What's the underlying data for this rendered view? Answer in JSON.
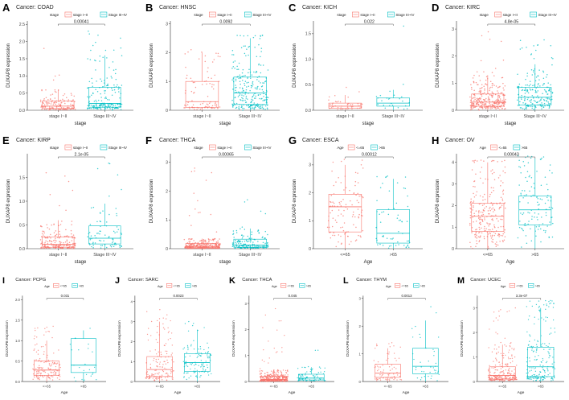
{
  "colors": {
    "group1": "#F8766D",
    "group2": "#00BFC4",
    "panel_bg": "#FFFFFF",
    "axis": "#333333",
    "text": "#222222",
    "bracket": "#555555"
  },
  "chart_data": [
    {
      "letter": "A",
      "title": "Cancer: COAD",
      "type": "boxplot",
      "legend_title": "stage",
      "legend_labels": [
        "stage I~II",
        "Stage III~IV"
      ],
      "categories": [
        "stage I~II",
        "Stage III~IV"
      ],
      "xlabel": "stage",
      "ylabel": "DUXAP8 expression",
      "ylim": [
        0,
        2.6
      ],
      "yticks": [
        0,
        0.5,
        1,
        1.5,
        2,
        2.5
      ],
      "pvalue": "0.00041",
      "boxes": [
        {
          "q1": 0.05,
          "med": 0.12,
          "q3": 0.27,
          "wlo": 0,
          "whi": 0.6,
          "max": 1.8,
          "n": 150
        },
        {
          "q1": 0.09,
          "med": 0.2,
          "q3": 0.67,
          "wlo": 0,
          "whi": 1.6,
          "max": 2.3,
          "n": 200
        }
      ]
    },
    {
      "letter": "B",
      "title": "Cancer: HNSC",
      "type": "boxplot",
      "legend_title": "stage",
      "legend_labels": [
        "stage I~II",
        "Stage III~IV"
      ],
      "categories": [
        "stage I~II",
        "Stage III~IV"
      ],
      "xlabel": "stage",
      "ylabel": "DUXAP8 expression",
      "ylim": [
        0,
        3.1
      ],
      "yticks": [
        0,
        1,
        2,
        3
      ],
      "pvalue": "0.0092",
      "boxes": [
        {
          "q1": 0.1,
          "med": 0.3,
          "q3": 1.0,
          "wlo": 0,
          "whi": 2.0,
          "max": 2.1,
          "n": 90
        },
        {
          "q1": 0.2,
          "med": 0.6,
          "q3": 1.15,
          "wlo": 0,
          "whi": 2.5,
          "max": 2.6,
          "n": 260
        }
      ]
    },
    {
      "letter": "C",
      "title": "Cancer: KICH",
      "type": "boxplot",
      "legend_title": "stage",
      "legend_labels": [
        "stage I~II",
        "Stage III~IV"
      ],
      "categories": [
        "stage I~II",
        "Stage III~IV"
      ],
      "xlabel": "stage",
      "ylabel": "DUXAP8 expression",
      "ylim": [
        0,
        1.75
      ],
      "yticks": [
        0,
        0.5,
        1,
        1.5
      ],
      "pvalue": "0.022",
      "boxes": [
        {
          "q1": 0.04,
          "med": 0.08,
          "q3": 0.14,
          "wlo": 0,
          "whi": 0.3,
          "max": 0.45,
          "n": 45
        },
        {
          "q1": 0.08,
          "med": 0.14,
          "q3": 0.24,
          "wlo": 0,
          "whi": 0.4,
          "max": 1.65,
          "n": 25
        }
      ]
    },
    {
      "letter": "D",
      "title": "Cancer: KIRC",
      "type": "boxplot",
      "legend_title": "stage",
      "legend_labels": [
        "stage I~II",
        "Stage III~IV"
      ],
      "categories": [
        "stage I~II",
        "Stage III~IV"
      ],
      "xlabel": "stage",
      "ylabel": "DUXAP8 expression",
      "ylim": [
        0,
        3.3
      ],
      "yticks": [
        0,
        1,
        2,
        3
      ],
      "pvalue": "4.8e-05",
      "boxes": [
        {
          "q1": 0.15,
          "med": 0.3,
          "q3": 0.6,
          "wlo": 0,
          "whi": 1.3,
          "max": 2.9,
          "n": 300
        },
        {
          "q1": 0.2,
          "med": 0.48,
          "q3": 0.85,
          "wlo": 0,
          "whi": 1.7,
          "max": 2.6,
          "n": 200
        }
      ]
    },
    {
      "letter": "E",
      "title": "Cancer: KIRP",
      "type": "boxplot",
      "legend_title": "stage",
      "legend_labels": [
        "stage I~II",
        "Stage III~IV"
      ],
      "categories": [
        "stage I~II",
        "Stage III~IV"
      ],
      "xlabel": "stage",
      "ylabel": "DUXAP8 expression",
      "ylim": [
        0,
        2.0
      ],
      "yticks": [
        0,
        0.5,
        1,
        1.5
      ],
      "pvalue": "2.1e-05",
      "boxes": [
        {
          "q1": 0.03,
          "med": 0.09,
          "q3": 0.25,
          "wlo": 0,
          "whi": 0.6,
          "max": 1.6,
          "n": 200
        },
        {
          "q1": 0.1,
          "med": 0.22,
          "q3": 0.48,
          "wlo": 0,
          "whi": 0.95,
          "max": 1.8,
          "n": 80
        }
      ]
    },
    {
      "letter": "F",
      "title": "Cancer: THCA",
      "type": "boxplot",
      "legend_title": "stage",
      "legend_labels": [
        "stage I~II",
        "Stage III~IV"
      ],
      "categories": [
        "stage I~II",
        "Stage III~IV"
      ],
      "xlabel": "stage",
      "ylabel": "DUXAP8 expression",
      "ylim": [
        0,
        3.3
      ],
      "yticks": [
        0,
        1,
        2,
        3
      ],
      "pvalue": "0.00065",
      "boxes": [
        {
          "q1": 0.03,
          "med": 0.08,
          "q3": 0.18,
          "wlo": 0,
          "whi": 0.35,
          "max": 2.8,
          "n": 330
        },
        {
          "q1": 0.05,
          "med": 0.13,
          "q3": 0.33,
          "wlo": 0,
          "whi": 0.7,
          "max": 1.7,
          "n": 170
        }
      ]
    },
    {
      "letter": "G",
      "title": "Cancer: ESCA",
      "type": "boxplot",
      "legend_title": "Age",
      "legend_labels": [
        "<=65",
        ">65"
      ],
      "categories": [
        "<=65",
        ">65"
      ],
      "xlabel": "Age",
      "ylabel": "DUXAP8 expression",
      "ylim": [
        0,
        3.4
      ],
      "yticks": [
        0,
        1,
        2,
        3
      ],
      "pvalue": "0.00012",
      "boxes": [
        {
          "q1": 0.6,
          "med": 1.5,
          "q3": 1.95,
          "wlo": 0,
          "whi": 3.0,
          "max": 3.2,
          "n": 110
        },
        {
          "q1": 0.2,
          "med": 0.55,
          "q3": 1.4,
          "wlo": 0,
          "whi": 2.5,
          "max": 2.6,
          "n": 60
        }
      ]
    },
    {
      "letter": "H",
      "title": "Cancer: OV",
      "type": "boxplot",
      "legend_title": "Age",
      "legend_labels": [
        "<=65",
        ">65"
      ],
      "categories": [
        "<=65",
        ">65"
      ],
      "xlabel": "Age",
      "ylabel": "DUXAP8 expression",
      "ylim": [
        0,
        4.4
      ],
      "yticks": [
        0,
        1,
        2,
        3,
        4
      ],
      "pvalue": "0.00043",
      "boxes": [
        {
          "q1": 0.8,
          "med": 1.5,
          "q3": 2.1,
          "wlo": 0,
          "whi": 4.0,
          "max": 4.1,
          "n": 250
        },
        {
          "q1": 1.1,
          "med": 1.8,
          "q3": 2.45,
          "wlo": 0,
          "whi": 4.2,
          "max": 4.3,
          "n": 120
        }
      ]
    },
    {
      "letter": "I",
      "title": "Cancer: PCPG",
      "type": "boxplot",
      "legend_title": "Age",
      "legend_labels": [
        "<=65",
        ">65"
      ],
      "categories": [
        "<=65",
        ">65"
      ],
      "xlabel": "Age",
      "ylabel": "DUXAP8 expression",
      "ylim": [
        0,
        2.1
      ],
      "yticks": [
        0,
        0.5,
        1,
        1.5,
        2
      ],
      "pvalue": "0.031",
      "boxes": [
        {
          "q1": 0.15,
          "med": 0.28,
          "q3": 0.5,
          "wlo": 0,
          "whi": 1.0,
          "max": 1.35,
          "n": 150
        },
        {
          "q1": 0.22,
          "med": 0.4,
          "q3": 1.05,
          "wlo": 0,
          "whi": 1.25,
          "max": 1.3,
          "n": 25
        }
      ]
    },
    {
      "letter": "J",
      "title": "Cancer: SARC",
      "type": "boxplot",
      "legend_title": "Age",
      "legend_labels": [
        "<=65",
        ">65"
      ],
      "categories": [
        "<=65",
        ">65"
      ],
      "xlabel": "Age",
      "ylabel": "DUXAP8 expression",
      "ylim": [
        0,
        4.3
      ],
      "yticks": [
        0,
        1,
        2,
        3,
        4
      ],
      "pvalue": "0.0023",
      "boxes": [
        {
          "q1": 0.25,
          "med": 0.6,
          "q3": 1.25,
          "wlo": 0,
          "whi": 3.0,
          "max": 3.6,
          "n": 150
        },
        {
          "q1": 0.5,
          "med": 0.95,
          "q3": 1.4,
          "wlo": 0,
          "whi": 2.6,
          "max": 3.0,
          "n": 110
        }
      ]
    },
    {
      "letter": "K",
      "title": "Cancer: THCA",
      "type": "boxplot",
      "legend_title": "Age",
      "legend_labels": [
        "<=65",
        ">65"
      ],
      "categories": [
        "<=65",
        ">65"
      ],
      "xlabel": "Age",
      "ylabel": "DUXAP8 expression",
      "ylim": [
        0,
        3.3
      ],
      "yticks": [
        0,
        1,
        2,
        3
      ],
      "pvalue": "0.045",
      "boxes": [
        {
          "q1": 0.03,
          "med": 0.08,
          "q3": 0.2,
          "wlo": 0,
          "whi": 0.45,
          "max": 2.8,
          "n": 420
        },
        {
          "q1": 0.06,
          "med": 0.13,
          "q3": 0.28,
          "wlo": 0,
          "whi": 0.55,
          "max": 1.2,
          "n": 80
        }
      ]
    },
    {
      "letter": "L",
      "title": "Cancer: THYM",
      "type": "boxplot",
      "legend_title": "Age",
      "legend_labels": [
        "<=65",
        ">65"
      ],
      "categories": [
        "<=65",
        ">65"
      ],
      "xlabel": "Age",
      "ylabel": "DUXAP8 expression",
      "ylim": [
        0,
        3.1
      ],
      "yticks": [
        0,
        1,
        2,
        3
      ],
      "pvalue": "0.0013",
      "boxes": [
        {
          "q1": 0.15,
          "med": 0.3,
          "q3": 0.62,
          "wlo": 0,
          "whi": 1.2,
          "max": 1.4,
          "n": 80
        },
        {
          "q1": 0.28,
          "med": 0.55,
          "q3": 1.2,
          "wlo": 0,
          "whi": 2.2,
          "max": 2.7,
          "n": 40
        }
      ]
    },
    {
      "letter": "M",
      "title": "Cancer: UCEC",
      "type": "boxplot",
      "legend_title": "Age",
      "legend_labels": [
        "<=65",
        ">65"
      ],
      "categories": [
        "<=65",
        ">65"
      ],
      "xlabel": "Age",
      "ylabel": "DUXAP8 expression",
      "ylim": [
        0,
        3.5
      ],
      "yticks": [
        0,
        1,
        2,
        3
      ],
      "pvalue": "3.3e-07",
      "boxes": [
        {
          "q1": 0.1,
          "med": 0.25,
          "q3": 0.6,
          "wlo": 0,
          "whi": 1.5,
          "max": 3.0,
          "n": 250
        },
        {
          "q1": 0.2,
          "med": 0.6,
          "q3": 1.4,
          "wlo": 0,
          "whi": 3.0,
          "max": 3.3,
          "n": 200
        }
      ]
    }
  ]
}
